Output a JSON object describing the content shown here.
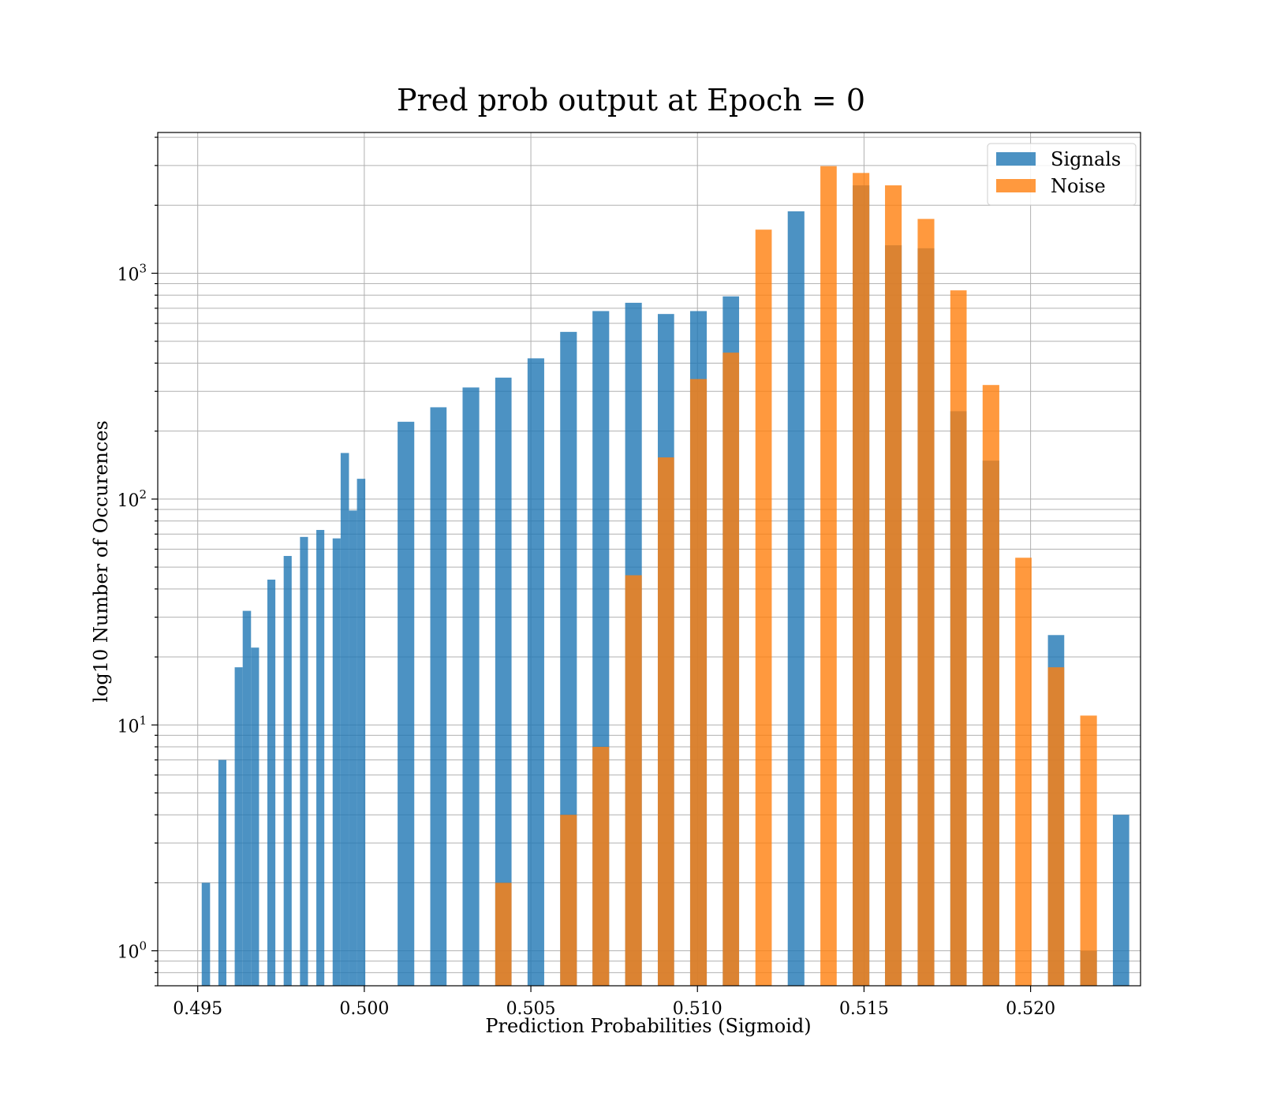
{
  "chart_data": {
    "type": "bar",
    "title": "Pred prob output at Epoch = 0",
    "xlabel": "Prediction Probabilities (Sigmoid)",
    "ylabel": "log10 Number of Occurences",
    "xlim": [
      0.4938,
      0.5233
    ],
    "ylim": [
      0.7,
      4200
    ],
    "yscale": "log",
    "grid": "major and minor",
    "legend_position": "top-right",
    "x_ticks": [
      {
        "value": 0.495,
        "label": "0.495"
      },
      {
        "value": 0.5,
        "label": "0.500"
      },
      {
        "value": 0.505,
        "label": "0.505"
      },
      {
        "value": 0.51,
        "label": "0.510"
      },
      {
        "value": 0.515,
        "label": "0.515"
      },
      {
        "value": 0.52,
        "label": "0.520"
      }
    ],
    "y_ticks": [
      {
        "value": 1,
        "base": "10",
        "exp": "0"
      },
      {
        "value": 10,
        "base": "10",
        "exp": "1"
      },
      {
        "value": 100,
        "base": "10",
        "exp": "2"
      },
      {
        "value": 1000,
        "base": "10",
        "exp": "3"
      }
    ],
    "series": [
      {
        "name": "Signals",
        "color": "#1f77b4",
        "bars": [
          {
            "x0": 0.49512,
            "x1": 0.49537,
            "value": 2
          },
          {
            "x0": 0.49562,
            "x1": 0.49586,
            "value": 7
          },
          {
            "x0": 0.49611,
            "x1": 0.49635,
            "value": 18
          },
          {
            "x0": 0.49635,
            "x1": 0.4966,
            "value": 32
          },
          {
            "x0": 0.4966,
            "x1": 0.49684,
            "value": 22
          },
          {
            "x0": 0.49709,
            "x1": 0.49733,
            "value": 44
          },
          {
            "x0": 0.49758,
            "x1": 0.49782,
            "value": 56
          },
          {
            "x0": 0.49807,
            "x1": 0.49831,
            "value": 68
          },
          {
            "x0": 0.49856,
            "x1": 0.4988,
            "value": 73
          },
          {
            "x0": 0.49905,
            "x1": 0.49929,
            "value": 67
          },
          {
            "x0": 0.49929,
            "x1": 0.49954,
            "value": 160
          },
          {
            "x0": 0.49954,
            "x1": 0.49978,
            "value": 89
          },
          {
            "x0": 0.49978,
            "x1": 0.50003,
            "value": 123
          },
          {
            "x0": 0.501,
            "x1": 0.5015,
            "value": 220
          },
          {
            "x0": 0.50198,
            "x1": 0.50247,
            "value": 255
          },
          {
            "x0": 0.50295,
            "x1": 0.50345,
            "value": 312
          },
          {
            "x0": 0.50393,
            "x1": 0.50442,
            "value": 345
          },
          {
            "x0": 0.5049,
            "x1": 0.5054,
            "value": 420
          },
          {
            "x0": 0.50588,
            "x1": 0.50638,
            "value": 550
          },
          {
            "x0": 0.50685,
            "x1": 0.50735,
            "value": 680
          },
          {
            "x0": 0.50783,
            "x1": 0.50833,
            "value": 740
          },
          {
            "x0": 0.50881,
            "x1": 0.5093,
            "value": 660
          },
          {
            "x0": 0.50978,
            "x1": 0.51028,
            "value": 680
          },
          {
            "x0": 0.51076,
            "x1": 0.51125,
            "value": 790
          },
          {
            "x0": 0.51271,
            "x1": 0.51321,
            "value": 1880
          },
          {
            "x0": 0.51466,
            "x1": 0.51516,
            "value": 2450
          },
          {
            "x0": 0.51563,
            "x1": 0.51613,
            "value": 1330
          },
          {
            "x0": 0.51661,
            "x1": 0.51711,
            "value": 1290
          },
          {
            "x0": 0.51759,
            "x1": 0.51808,
            "value": 245
          },
          {
            "x0": 0.51856,
            "x1": 0.51906,
            "value": 148
          },
          {
            "x0": 0.52052,
            "x1": 0.52101,
            "value": 25
          },
          {
            "x0": 0.52149,
            "x1": 0.52199,
            "value": 1
          },
          {
            "x0": 0.52247,
            "x1": 0.52296,
            "value": 4
          }
        ]
      },
      {
        "name": "Noise",
        "color": "#ff7f0e",
        "bars": [
          {
            "x0": 0.50393,
            "x1": 0.50442,
            "value": 2
          },
          {
            "x0": 0.50588,
            "x1": 0.50638,
            "value": 4
          },
          {
            "x0": 0.50685,
            "x1": 0.50735,
            "value": 8
          },
          {
            "x0": 0.50783,
            "x1": 0.50833,
            "value": 46
          },
          {
            "x0": 0.50881,
            "x1": 0.5093,
            "value": 153
          },
          {
            "x0": 0.50978,
            "x1": 0.51028,
            "value": 340
          },
          {
            "x0": 0.51076,
            "x1": 0.51125,
            "value": 445
          },
          {
            "x0": 0.51174,
            "x1": 0.51223,
            "value": 1560
          },
          {
            "x0": 0.51369,
            "x1": 0.51418,
            "value": 2980
          },
          {
            "x0": 0.51466,
            "x1": 0.51516,
            "value": 2780
          },
          {
            "x0": 0.51563,
            "x1": 0.51613,
            "value": 2450
          },
          {
            "x0": 0.51661,
            "x1": 0.51711,
            "value": 1740
          },
          {
            "x0": 0.51759,
            "x1": 0.51808,
            "value": 840
          },
          {
            "x0": 0.51856,
            "x1": 0.51906,
            "value": 320
          },
          {
            "x0": 0.51954,
            "x1": 0.52003,
            "value": 55
          },
          {
            "x0": 0.52052,
            "x1": 0.52101,
            "value": 18
          },
          {
            "x0": 0.52149,
            "x1": 0.52199,
            "value": 11
          }
        ]
      }
    ]
  }
}
